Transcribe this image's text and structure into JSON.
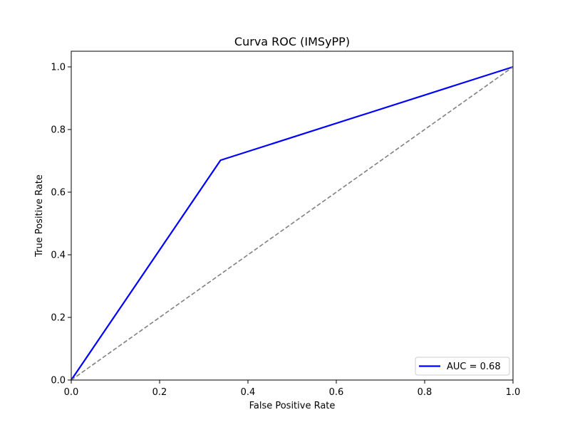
{
  "chart_data": {
    "type": "line",
    "title": "Curva ROC (IMSyPP)",
    "xlabel": "False Positive Rate",
    "ylabel": "True Positive Rate",
    "xlim": [
      0.0,
      1.0
    ],
    "ylim": [
      0.0,
      1.05
    ],
    "xticks": [
      0.0,
      0.2,
      0.4,
      0.6,
      0.8,
      1.0
    ],
    "xtick_labels": [
      "0.0",
      "0.2",
      "0.4",
      "0.6",
      "0.8",
      "1.0"
    ],
    "yticks": [
      0.0,
      0.2,
      0.4,
      0.6,
      0.8,
      1.0
    ],
    "ytick_labels": [
      "0.0",
      "0.2",
      "0.4",
      "0.6",
      "0.8",
      "1.0"
    ],
    "grid": false,
    "legend": {
      "placement": "bottom-right",
      "entries": [
        {
          "label": "AUC = 0.68",
          "color": "#0000ff"
        }
      ]
    },
    "series": [
      {
        "name": "AUC = 0.68",
        "style": "solid",
        "color": "#0000ff",
        "x": [
          0.0,
          0.338,
          1.0
        ],
        "y": [
          0.0,
          0.702,
          1.0
        ]
      },
      {
        "style": "dashed",
        "color": "#808080",
        "x": [
          0.0,
          1.0
        ],
        "y": [
          0.0,
          1.0
        ]
      }
    ]
  }
}
